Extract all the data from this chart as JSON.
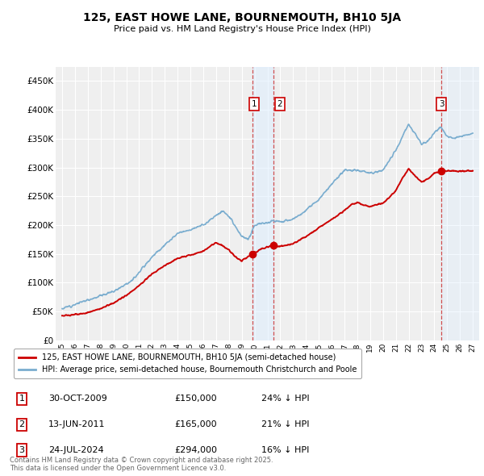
{
  "title": "125, EAST HOWE LANE, BOURNEMOUTH, BH10 5JA",
  "subtitle": "Price paid vs. HM Land Registry's House Price Index (HPI)",
  "legend_label_red": "125, EAST HOWE LANE, BOURNEMOUTH, BH10 5JA (semi-detached house)",
  "legend_label_blue": "HPI: Average price, semi-detached house, Bournemouth Christchurch and Poole",
  "transactions": [
    {
      "num": 1,
      "date": "30-OCT-2009",
      "price": 150000,
      "hpi_diff": "24% ↓ HPI",
      "x_year": 2009.83
    },
    {
      "num": 2,
      "date": "13-JUN-2011",
      "price": 165000,
      "hpi_diff": "21% ↓ HPI",
      "x_year": 2011.45
    },
    {
      "num": 3,
      "date": "24-JUL-2024",
      "price": 294000,
      "hpi_diff": "16% ↓ HPI",
      "x_year": 2024.56
    }
  ],
  "shaded_region1": [
    2009.83,
    2011.45
  ],
  "shaded_region2": [
    2024.56,
    2027.5
  ],
  "ylim": [
    0,
    475000
  ],
  "yticks": [
    0,
    50000,
    100000,
    150000,
    200000,
    250000,
    300000,
    350000,
    400000,
    450000
  ],
  "xlim_start": 1994.5,
  "xlim_end": 2027.5,
  "footer": "Contains HM Land Registry data © Crown copyright and database right 2025.\nThis data is licensed under the Open Government Licence v3.0.",
  "background_color": "#ffffff",
  "plot_bg_color": "#efefef",
  "grid_color": "#ffffff",
  "red_color": "#cc0000",
  "blue_color": "#7aadcf",
  "shade_color": "#ddeeff",
  "vline_color": "#cc3333"
}
